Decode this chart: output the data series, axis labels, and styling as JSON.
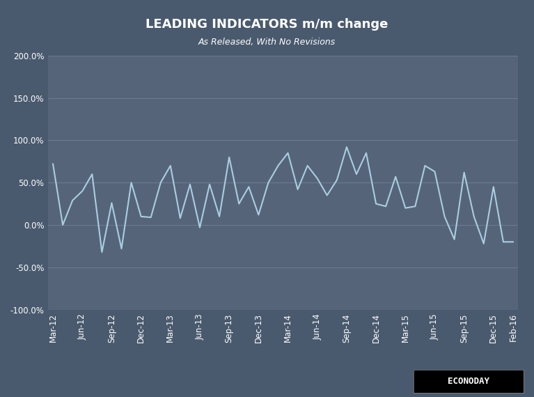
{
  "title": "LEADING INDICATORS m/m change",
  "subtitle": "As Released, With No Revisions",
  "background_color": "#4a5a6e",
  "plot_bg_color": "#56647a",
  "grid_color": "#6b7a8d",
  "line_color": "#a8cfe0",
  "title_color": "#ffffff",
  "subtitle_color": "#ffffff",
  "tick_label_color": "#ffffff",
  "ylim": [
    -1.0,
    2.0
  ],
  "yticks": [
    -1.0,
    -0.5,
    0.0,
    0.5,
    1.0,
    1.5,
    2.0
  ],
  "x_labels": [
    "Mar-12",
    "Jun-12",
    "Sep-12",
    "Dec-12",
    "Mar-13",
    "Jun-13",
    "Sep-13",
    "Dec-13",
    "Mar-14",
    "Jun-14",
    "Sep-14",
    "Dec-14",
    "Mar-15",
    "Jun-15",
    "Sep-15",
    "Dec-15",
    "Feb-16"
  ],
  "y_data": [
    0.72,
    0.0,
    0.29,
    0.4,
    0.6,
    -0.32,
    0.26,
    -0.28,
    0.5,
    0.1,
    0.09,
    0.5,
    0.7,
    0.08,
    0.48,
    -0.03,
    0.48,
    0.1,
    0.8,
    0.25,
    0.45,
    0.12,
    0.5,
    0.7,
    0.85,
    0.42,
    0.7,
    0.55,
    0.35,
    0.53,
    0.92,
    0.6,
    0.85,
    0.25,
    0.22,
    0.57,
    0.2,
    0.22,
    0.7,
    0.63,
    0.1,
    -0.17,
    0.62,
    0.1,
    -0.22,
    0.45,
    -0.2,
    -0.2
  ]
}
